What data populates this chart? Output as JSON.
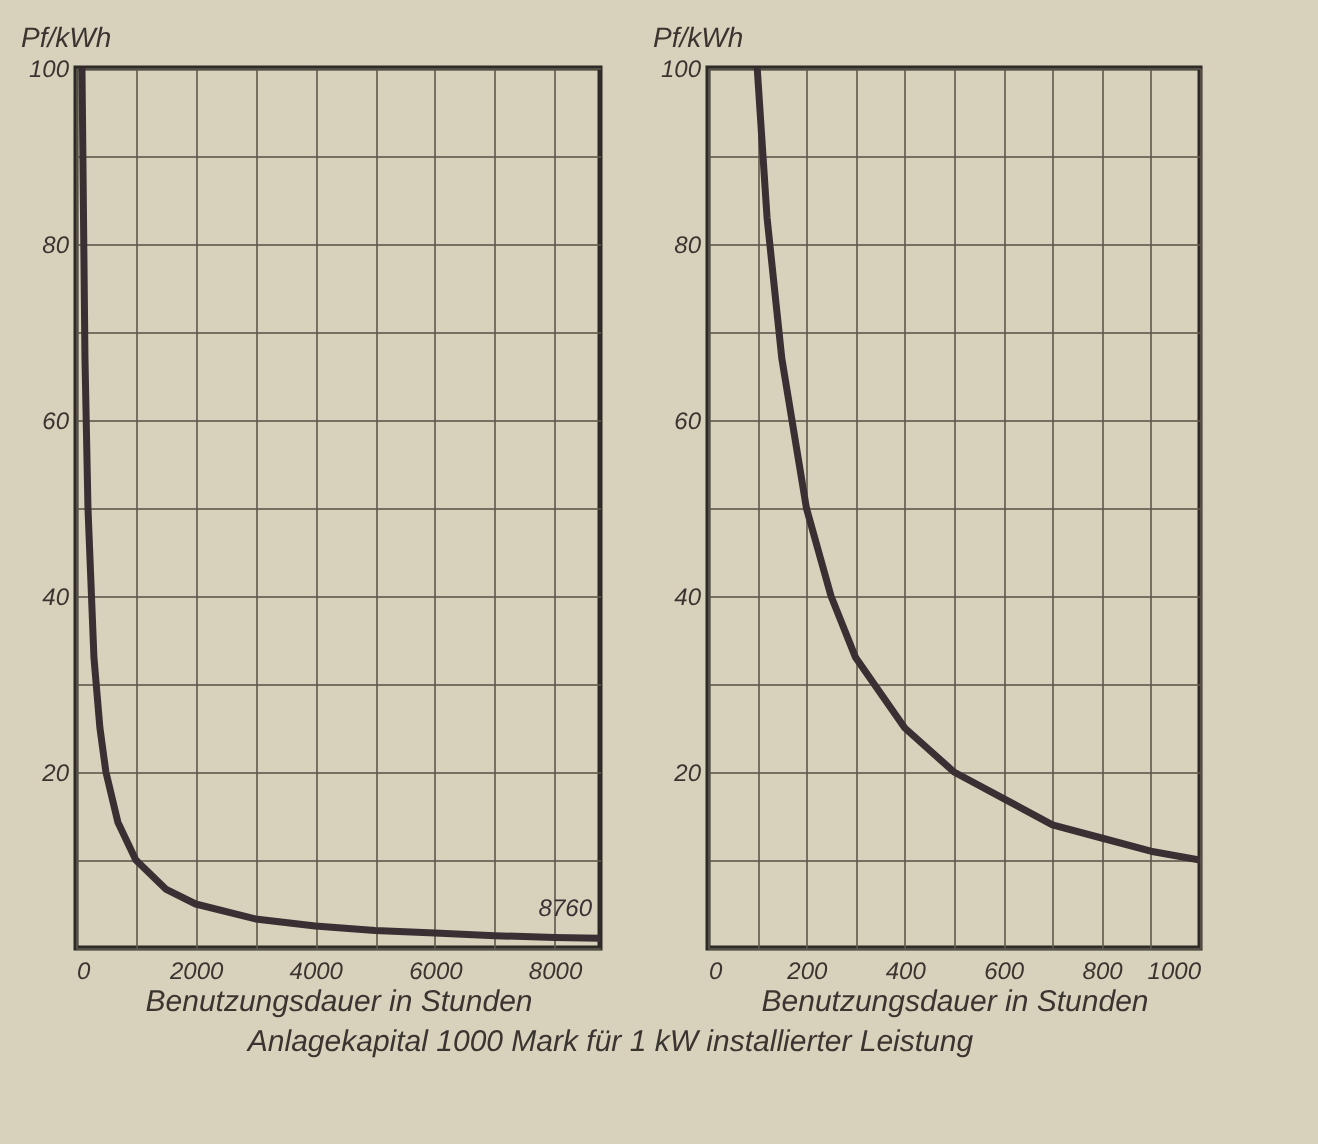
{
  "chart_data": [
    {
      "type": "line",
      "xlabel": "Benutzungsdauer in Stunden",
      "ylabel": "Pf/kWh",
      "x": [
        100,
        150,
        200,
        300,
        400,
        500,
        700,
        1000,
        1500,
        2000,
        3000,
        4000,
        5000,
        6000,
        7000,
        8000,
        8760
      ],
      "values": [
        100,
        67,
        50,
        33,
        25,
        20,
        14.3,
        10,
        6.7,
        5,
        3.3,
        2.5,
        2,
        1.7,
        1.4,
        1.2,
        1.1
      ],
      "color": "#3a3034",
      "xlim": [
        0,
        8760
      ],
      "xticks": [
        0,
        {
          "value": 1000,
          "label": null
        },
        2000,
        {
          "value": 3000,
          "label": null
        },
        4000,
        {
          "value": 5000,
          "label": null
        },
        6000,
        {
          "value": 7000,
          "label": null
        },
        8000
      ],
      "ylim": [
        0,
        100
      ],
      "yticks": [
        {
          "value": 0,
          "label": null
        },
        {
          "value": 10,
          "label": null
        },
        20,
        {
          "value": 30,
          "label": null
        },
        40,
        {
          "value": 50,
          "label": null
        },
        60,
        {
          "value": 70,
          "label": null
        },
        80,
        {
          "value": 90,
          "label": null
        },
        100
      ],
      "grid": true,
      "annotations": [
        {
          "text": "8760",
          "x": 8760,
          "y": 1.1
        },
        "Anlagekapital 1000 Mark für 1 kW installierter Leistung"
      ]
    },
    {
      "type": "line",
      "xlabel": "Benutzungsdauer in Stunden",
      "ylabel": "Pf/kWh",
      "x": [
        100,
        120,
        150,
        200,
        250,
        300,
        400,
        500,
        600,
        700,
        800,
        900,
        1000
      ],
      "values": [
        100,
        83,
        67,
        50,
        40,
        33,
        25,
        20,
        17,
        14,
        12.5,
        11,
        10
      ],
      "color": "#3a3034",
      "xlim": [
        0,
        1000
      ],
      "xticks": [
        0,
        {
          "value": 100,
          "label": null
        },
        200,
        {
          "value": 300,
          "label": null
        },
        400,
        {
          "value": 500,
          "label": null
        },
        600,
        {
          "value": 700,
          "label": null
        },
        800,
        {
          "value": 900,
          "label": null
        },
        1000
      ],
      "ylim": [
        0,
        100
      ],
      "yticks": [
        {
          "value": 0,
          "label": null
        },
        {
          "value": 10,
          "label": null
        },
        20,
        {
          "value": 30,
          "label": null
        },
        40,
        {
          "value": 50,
          "label": null
        },
        60,
        {
          "value": 70,
          "label": null
        },
        80,
        {
          "value": 90,
          "label": null
        },
        100
      ],
      "grid": true
    }
  ]
}
